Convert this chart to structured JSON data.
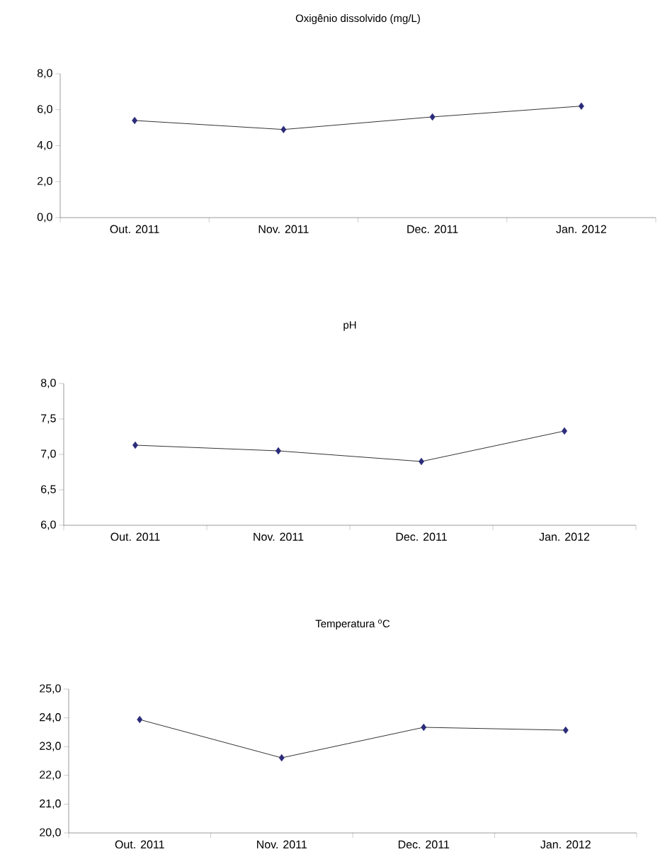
{
  "chart_data": [
    {
      "type": "line",
      "title": "Oxigênio dissolvido (mg/L)",
      "categories": [
        "Out. 2011",
        "Nov. 2011",
        "Dec. 2011",
        "Jan. 2012"
      ],
      "values": [
        5.4,
        4.9,
        5.6,
        6.2
      ],
      "color": "#2b2b7a",
      "marker": "diamond",
      "ylim": [
        0,
        8
      ],
      "yticks": [
        {
          "value": 0,
          "label": "0,0"
        },
        {
          "value": 2,
          "label": "2,0"
        },
        {
          "value": 4,
          "label": "4,0"
        },
        {
          "value": 6,
          "label": "6,0"
        },
        {
          "value": 8,
          "label": "8,0"
        }
      ]
    },
    {
      "type": "line",
      "title": "pH",
      "categories": [
        "Out. 2011",
        "Nov. 2011",
        "Dec. 2011",
        "Jan. 2012"
      ],
      "values": [
        7.13,
        7.05,
        6.9,
        7.33
      ],
      "color": "#2b2b7a",
      "marker": "diamond",
      "ylim": [
        6,
        8
      ],
      "yticks": [
        {
          "value": 6,
          "label": "6,0"
        },
        {
          "value": 6.5,
          "label": "6,5"
        },
        {
          "value": 7,
          "label": "7,0"
        },
        {
          "value": 7.5,
          "label": "7,5"
        },
        {
          "value": 8,
          "label": "8,0"
        }
      ]
    },
    {
      "type": "line",
      "title": "Temperatura  $^{o}$C",
      "categories": [
        "Out. 2011",
        "Nov. 2011",
        "Dec. 2011",
        "Jan. 2012"
      ],
      "values": [
        23.94,
        22.61,
        23.67,
        23.57
      ],
      "color": "#2b2b7a",
      "marker": "diamond",
      "ylim": [
        20,
        25
      ],
      "yticks": [
        {
          "value": 20,
          "label": "20,0"
        },
        {
          "value": 21,
          "label": "21,0"
        },
        {
          "value": 22,
          "label": "22,0"
        },
        {
          "value": 23,
          "label": "23,0"
        },
        {
          "value": 24,
          "label": "24,0"
        },
        {
          "value": 25,
          "label": "25,0"
        }
      ]
    }
  ]
}
